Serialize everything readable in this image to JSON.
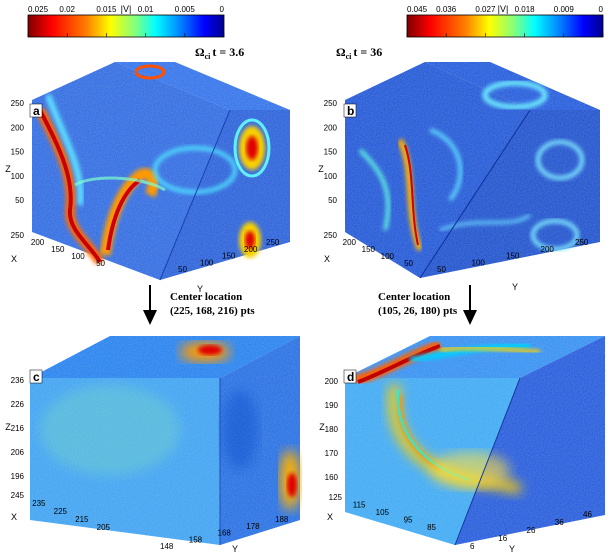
{
  "colorbars": [
    {
      "title": "|V|",
      "ticks": [
        "0.025",
        "0.02",
        "0.015",
        "0.01",
        "0.005",
        "0"
      ],
      "time_label": "Ω",
      "time_sub": "ci",
      "time_rest": "t = 3.6"
    },
    {
      "title": "|V|",
      "ticks": [
        "0.045",
        "0.036",
        "0.027",
        "0.018",
        "0.009",
        "0"
      ],
      "time_label": "Ω",
      "time_sub": "ci",
      "time_rest": "t = 36"
    }
  ],
  "colors": {
    "jet": [
      "#7f0000",
      "#ff0000",
      "#ff8000",
      "#ffff00",
      "#80ff80",
      "#00ffff",
      "#0080ff",
      "#0000ff",
      "#00008f"
    ],
    "panel_bg": "#1e5ae0"
  },
  "panels": [
    {
      "label": "a",
      "z_label": "Z",
      "x_label": "X",
      "y_label": "Y",
      "z_ticks": [
        "250",
        "200",
        "150",
        "100",
        "50"
      ],
      "x_ticks": [
        "250",
        "200",
        "150",
        "100",
        "50"
      ],
      "y_ticks": [
        "50",
        "100",
        "150",
        "200",
        "250"
      ]
    },
    {
      "label": "b",
      "z_label": "Z",
      "x_label": "X",
      "y_label": "Y",
      "z_ticks": [
        "250",
        "200",
        "150",
        "100",
        "50"
      ],
      "x_ticks": [
        "250",
        "200",
        "150",
        "100",
        "50"
      ],
      "y_ticks": [
        "50",
        "100",
        "150",
        "200",
        "250"
      ]
    },
    {
      "label": "c",
      "z_label": "Z",
      "x_label": "X",
      "y_label": "Y",
      "z_ticks": [
        "236",
        "226",
        "216",
        "206",
        "196"
      ],
      "x_ticks": [
        "245",
        "235",
        "225",
        "215",
        "205"
      ],
      "y_ticks": [
        "148",
        "158",
        "168",
        "178",
        "188"
      ]
    },
    {
      "label": "d",
      "z_label": "Z",
      "x_label": "X",
      "y_label": "Y",
      "z_ticks": [
        "200",
        "190",
        "180",
        "170",
        "160"
      ],
      "x_ticks": [
        "125",
        "115",
        "105",
        "95",
        "85"
      ],
      "y_ticks": [
        "6",
        "16",
        "26",
        "36",
        "46"
      ]
    }
  ],
  "annotations": [
    {
      "line1": "Center location",
      "line2": "(225,  168,  216) pts"
    },
    {
      "line1": "Center location",
      "line2": "(105,  26,  180) pts"
    }
  ]
}
